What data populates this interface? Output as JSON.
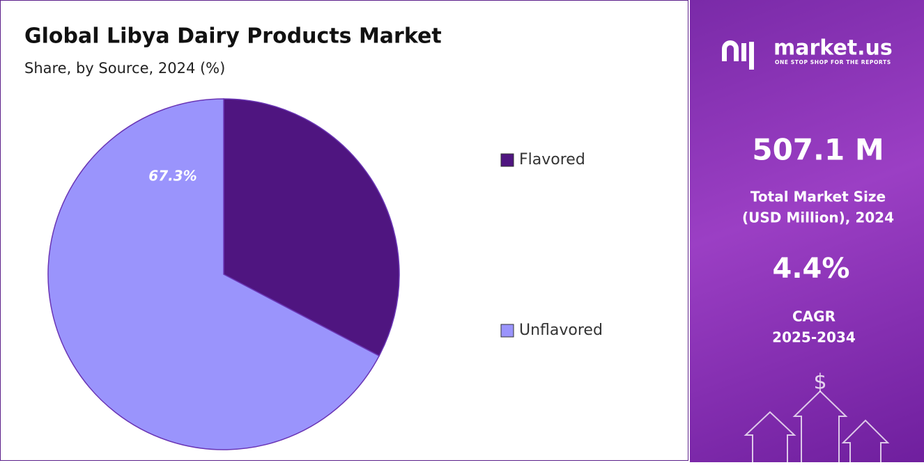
{
  "chart_data": {
    "type": "pie",
    "title": "Global Libya Dairy Products Market",
    "subtitle": "Share, by Source, 2024 (%)",
    "categories": [
      "Flavored",
      "Unflavored"
    ],
    "values": [
      32.7,
      67.3
    ],
    "value_labels": [
      null,
      "67.3%"
    ],
    "colors": [
      "#4f1580",
      "#9a94fc"
    ]
  },
  "panel": {
    "brand": "market.us",
    "tagline": "ONE STOP SHOP FOR THE REPORTS",
    "market_size": "507.1 M",
    "market_size_label": [
      "Total Market Size",
      "(USD Million), 2024"
    ],
    "cagr": "4.4%",
    "cagr_label": [
      "CAGR",
      "2025-2034"
    ]
  }
}
